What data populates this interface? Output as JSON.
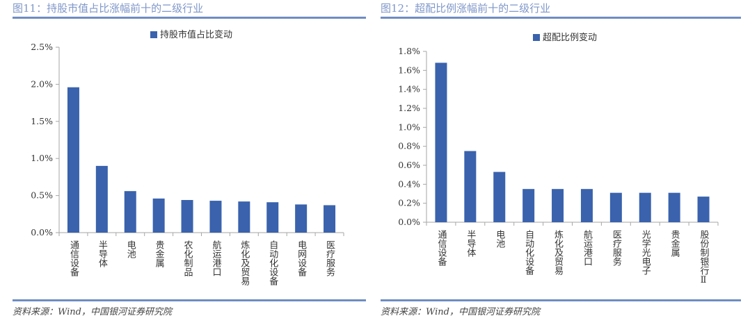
{
  "colors": {
    "bar": "#3a62ad",
    "title": "#7f97c9",
    "rule": "#6f8cc2",
    "axis": "#a6a6a6"
  },
  "panels": [
    {
      "title": "图11：持股市值占比涨幅前十的二级行业",
      "source": "资料来源：Wind，中国银河证券研究院"
    },
    {
      "title": "图12：超配比例涨幅前十的二级行业",
      "source": "资料来源：Wind，中国银河证券研究院"
    }
  ],
  "chart_data": [
    {
      "type": "bar",
      "legend": "持股市值占比变动",
      "legend_position": "top",
      "categories": [
        "通信设备",
        "半导体",
        "电池",
        "贵金属",
        "农化制品",
        "航运港口",
        "炼化及贸易",
        "自动化设备",
        "电网设备",
        "医疗服务"
      ],
      "series": [
        {
          "name": "持股市值占比变动",
          "values": [
            1.96,
            0.9,
            0.56,
            0.46,
            0.44,
            0.43,
            0.42,
            0.41,
            0.38,
            0.37
          ]
        }
      ],
      "unit": "%",
      "ylim": [
        0,
        2.5
      ],
      "yticks": [
        "0.0%",
        "0.5%",
        "1.0%",
        "1.5%",
        "2.0%",
        "2.5%"
      ],
      "grid": false
    },
    {
      "type": "bar",
      "legend": "超配比例变动",
      "legend_position": "top",
      "categories": [
        "通信设备",
        "半导体",
        "电池",
        "自动化设备",
        "炼化及贸易",
        "航运港口",
        "医疗服务",
        "光学光电子",
        "贵金属",
        "股份制银行Ⅱ"
      ],
      "series": [
        {
          "name": "超配比例变动",
          "values": [
            1.68,
            0.75,
            0.53,
            0.35,
            0.35,
            0.35,
            0.31,
            0.31,
            0.31,
            0.27
          ]
        }
      ],
      "unit": "%",
      "ylim": [
        0,
        1.8
      ],
      "yticks": [
        "0.0%",
        "0.2%",
        "0.4%",
        "0.6%",
        "0.8%",
        "1.0%",
        "1.2%",
        "1.4%",
        "1.6%",
        "1.8%"
      ],
      "grid": false
    }
  ]
}
